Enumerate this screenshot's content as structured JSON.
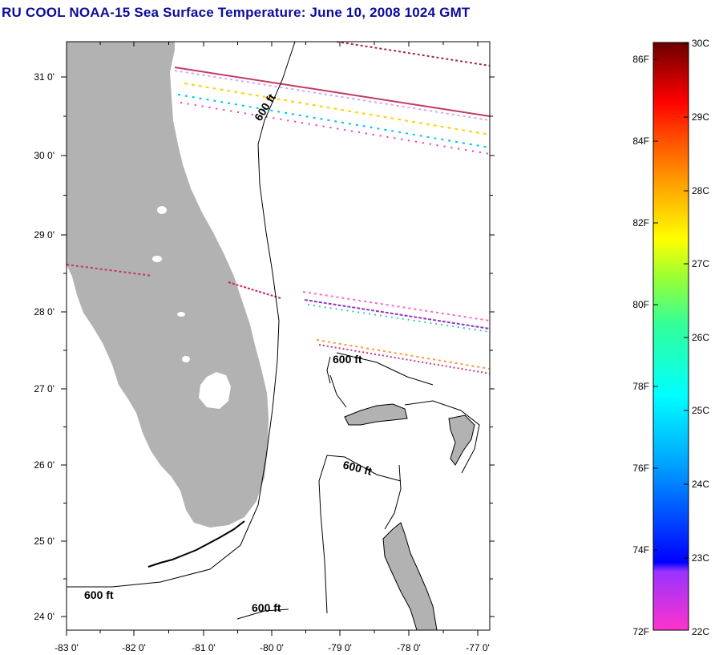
{
  "title": "RU COOL  NOAA-15  Sea Surface Temperature:  June 10, 2008 1024 GMT",
  "map": {
    "x_ticks": [
      "-83 0'",
      "-82 0'",
      "-81 0'",
      "-80 0'",
      "-79 0'",
      "-78 0'",
      "-77 0'"
    ],
    "y_ticks": [
      "31 0'",
      "30 0'",
      "29 0'",
      "28 0'",
      "27 0'",
      "26 0'",
      "25 0'",
      "24 0'"
    ],
    "contour_labels": [
      "600 ft",
      "600 ft",
      "600 ft",
      "600 ft",
      "600 ft"
    ],
    "land_color": "#b2b2b2",
    "lon_range": [
      -83,
      -76.85
    ],
    "lat_range": [
      23.82,
      31.45
    ]
  },
  "colorbar": {
    "fahrenheit_labels": [
      "86F",
      "84F",
      "82F",
      "80F",
      "78F",
      "76F",
      "74F",
      "72F"
    ],
    "celsius_labels": [
      "30C",
      "29C",
      "28C",
      "27C",
      "26C",
      "25C",
      "24C",
      "23C",
      "22C"
    ],
    "range_c": [
      22,
      30
    ]
  }
}
